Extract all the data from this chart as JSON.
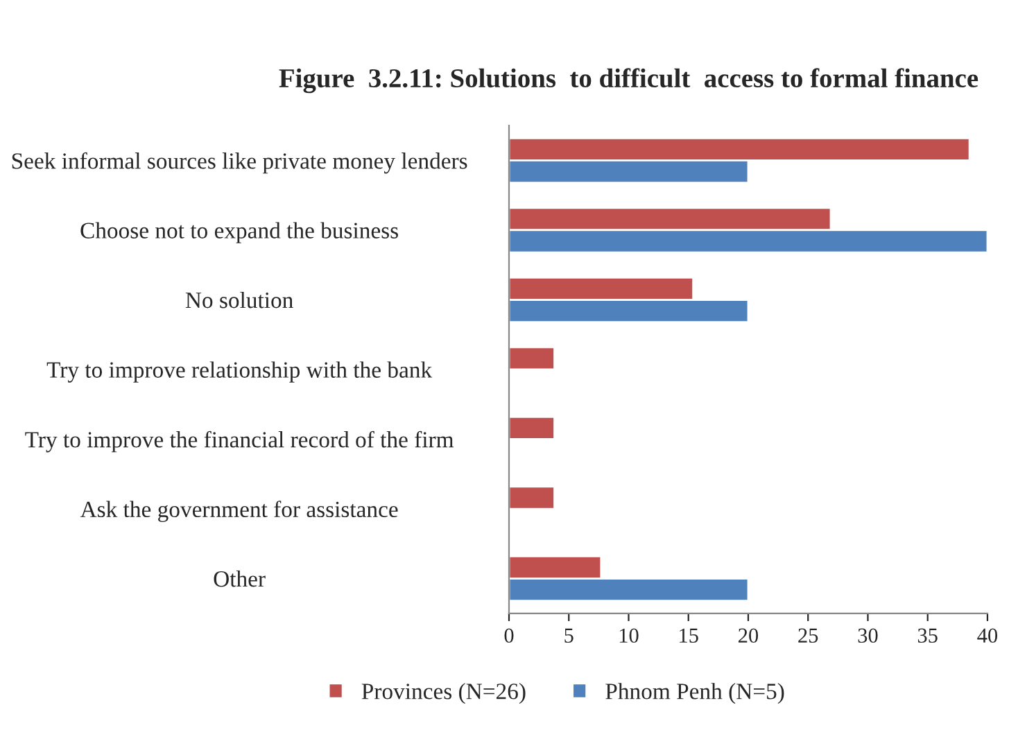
{
  "chart_data": {
    "type": "bar",
    "orientation": "horizontal",
    "title": "Figure  3.2.11: Solutions  to difficult  access to formal finance",
    "categories": [
      "Seek informal sources like private money lenders",
      "Choose not to expand the business",
      "No solution",
      "Try to improve relationship with the bank",
      "Try to improve the financial record of the firm",
      "Ask the government for assistance",
      "Other"
    ],
    "series": [
      {
        "name": "Provinces (N=26)",
        "color": "#c0504d",
        "values": [
          38.5,
          26.9,
          15.4,
          3.8,
          3.8,
          3.8,
          7.7
        ]
      },
      {
        "name": "Phnom Penh (N=5)",
        "color": "#4f81bd",
        "values": [
          20,
          40,
          20,
          null,
          null,
          null,
          20
        ]
      }
    ],
    "xlim": [
      0,
      40
    ],
    "xticks": [
      0,
      5,
      10,
      15,
      20,
      25,
      30,
      35,
      40
    ],
    "grid": false,
    "legend": "bottom"
  }
}
